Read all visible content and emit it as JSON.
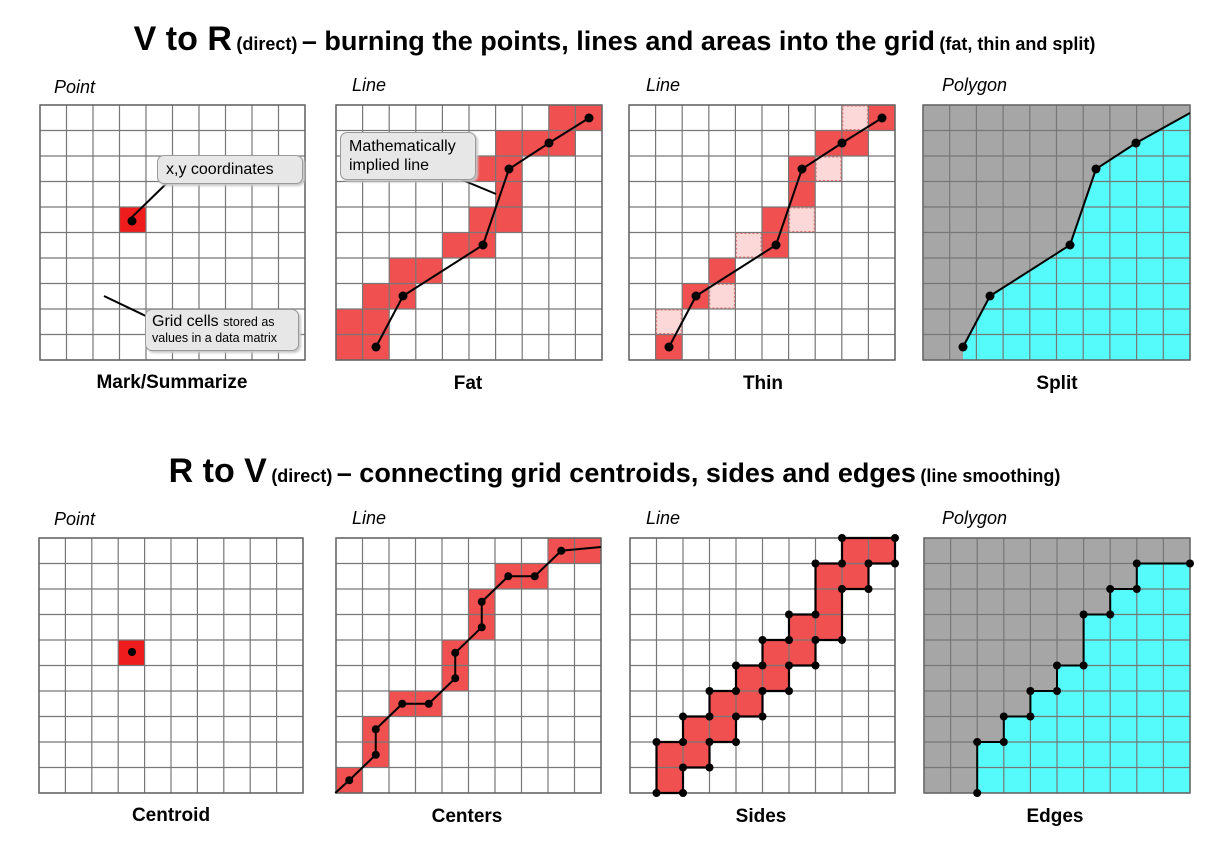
{
  "section1": {
    "title_main": "V to R",
    "title_paren1": "(direct)",
    "title_rest": "– burning the points, lines and areas into the grid",
    "title_paren2": "(fat, thin and split)"
  },
  "section2": {
    "title_main": "R to V",
    "title_paren1": "(direct)",
    "title_rest": "– connecting grid centroids, sides and edges",
    "title_paren2": "(line smoothing)"
  },
  "panels": {
    "p1": {
      "type": "Point",
      "caption": "Mark/Summarize"
    },
    "p2": {
      "type": "Line",
      "caption": "Fat"
    },
    "p3": {
      "type": "Line",
      "caption": "Thin"
    },
    "p4": {
      "type": "Polygon",
      "caption": "Split"
    },
    "p5": {
      "type": "Point",
      "caption": "Centroid"
    },
    "p6": {
      "type": "Line",
      "caption": "Centers"
    },
    "p7": {
      "type": "Line",
      "caption": "Sides"
    },
    "p8": {
      "type": "Polygon",
      "caption": "Edges"
    }
  },
  "callouts": {
    "xy": "x,y coordinates",
    "grid_big": "Grid cells",
    "grid_small1": "stored as",
    "grid_small2": "values in a data matrix",
    "math1": "Mathematically",
    "math2": "implied line"
  },
  "colors": {
    "cell_red": "#f05050",
    "point_red": "#ee1c1c",
    "thin_pink": "#fdd8d8",
    "polygon_gray": "#a6a6a6",
    "polygon_cyan": "#55fbfb"
  }
}
